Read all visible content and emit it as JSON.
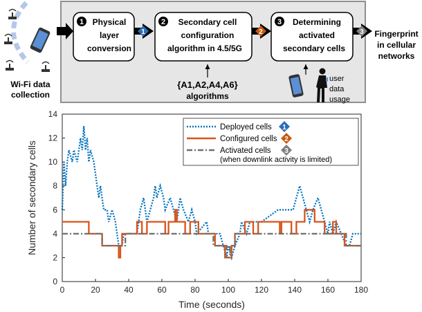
{
  "diagram": {
    "wifi_caption": [
      "Wi-Fi data",
      "collection"
    ],
    "steps": [
      {
        "number": "1",
        "lines": [
          "Physical",
          "layer",
          "conversion"
        ]
      },
      {
        "number": "2",
        "lines": [
          "Secondary cell",
          "configuration",
          "algorithm in 4.5/5G"
        ]
      },
      {
        "number": "3",
        "lines": [
          "Determining",
          "activated",
          "secondary cells"
        ]
      }
    ],
    "algorithms": [
      "{A1,A2,A4,A6}",
      "algorithms"
    ],
    "user_data": [
      "user",
      "data",
      "usage"
    ],
    "output": [
      "Fingerprint",
      "in cellular",
      "networks"
    ],
    "colors": {
      "badge1": "#2f6eb5",
      "badge2": "#c55a11",
      "badge3": "#7f7f7f",
      "panel": "#e6e6e6"
    }
  },
  "chart_data": {
    "type": "line",
    "xlabel": "Time (seconds)",
    "ylabel": "Number of secondary cells",
    "xlim": [
      0,
      180
    ],
    "ylim": [
      0,
      14
    ],
    "xticks": [
      0,
      20,
      40,
      60,
      80,
      100,
      120,
      140,
      160,
      180
    ],
    "yticks": [
      0,
      2,
      4,
      6,
      8,
      10,
      12,
      14
    ],
    "grid": false,
    "legend_position": "top-right",
    "series": [
      {
        "name": "Deployed cells",
        "badge": "1",
        "color": "#0072bd",
        "style": "dotted",
        "points": [
          [
            0,
            6
          ],
          [
            1,
            10
          ],
          [
            2,
            8
          ],
          [
            3,
            10
          ],
          [
            4,
            11
          ],
          [
            6,
            10
          ],
          [
            7,
            11
          ],
          [
            9,
            10
          ],
          [
            11,
            12
          ],
          [
            12,
            11
          ],
          [
            13,
            13
          ],
          [
            14,
            11
          ],
          [
            15,
            12
          ],
          [
            16,
            10
          ],
          [
            17,
            11
          ],
          [
            19,
            10
          ],
          [
            20,
            9
          ],
          [
            21,
            8
          ],
          [
            22,
            7
          ],
          [
            23,
            8
          ],
          [
            24,
            7
          ],
          [
            25,
            6
          ],
          [
            27,
            6
          ],
          [
            28,
            5
          ],
          [
            30,
            6
          ],
          [
            32,
            5
          ],
          [
            33,
            4
          ],
          [
            34,
            3
          ],
          [
            36,
            3
          ],
          [
            37,
            4
          ],
          [
            45,
            4
          ],
          [
            46,
            5
          ],
          [
            47,
            6
          ],
          [
            49,
            7
          ],
          [
            50,
            6
          ],
          [
            51,
            5
          ],
          [
            53,
            6
          ],
          [
            55,
            7
          ],
          [
            56,
            8
          ],
          [
            57,
            7
          ],
          [
            59,
            8
          ],
          [
            61,
            7
          ],
          [
            62,
            6
          ],
          [
            65,
            7
          ],
          [
            67,
            6
          ],
          [
            69,
            5
          ],
          [
            70,
            6
          ],
          [
            71,
            7
          ],
          [
            73,
            6
          ],
          [
            76,
            5
          ],
          [
            78,
            6
          ],
          [
            80,
            5
          ],
          [
            81,
            4
          ],
          [
            87,
            5
          ],
          [
            88,
            4
          ],
          [
            93,
            4
          ],
          [
            95,
            4
          ],
          [
            97,
            3
          ],
          [
            99,
            2
          ],
          [
            100,
            3
          ],
          [
            102,
            2
          ],
          [
            104,
            3
          ],
          [
            107,
            4
          ],
          [
            108,
            5
          ],
          [
            111,
            4
          ],
          [
            113,
            5
          ],
          [
            118,
            5
          ],
          [
            120,
            5
          ],
          [
            130,
            6
          ],
          [
            132,
            6
          ],
          [
            137,
            6
          ],
          [
            139,
            6
          ],
          [
            141,
            7
          ],
          [
            143,
            8
          ],
          [
            145,
            7
          ],
          [
            147,
            6
          ],
          [
            149,
            5
          ],
          [
            151,
            6
          ],
          [
            154,
            7
          ],
          [
            156,
            6
          ],
          [
            158,
            5
          ],
          [
            160,
            4
          ],
          [
            161,
            5
          ],
          [
            163,
            4
          ],
          [
            165,
            5
          ],
          [
            168,
            4
          ],
          [
            171,
            3
          ],
          [
            173,
            3
          ],
          [
            175,
            4
          ],
          [
            180,
            4
          ]
        ]
      },
      {
        "name": "Configured cells",
        "badge": "2",
        "color": "#d95319",
        "style": "solid",
        "points": [
          [
            0,
            5
          ],
          [
            16,
            5
          ],
          [
            16,
            4
          ],
          [
            24,
            4
          ],
          [
            24,
            3
          ],
          [
            34,
            3
          ],
          [
            34,
            2
          ],
          [
            35,
            2
          ],
          [
            35,
            3
          ],
          [
            36,
            3
          ],
          [
            36,
            4
          ],
          [
            45,
            4
          ],
          [
            45,
            5
          ],
          [
            48,
            5
          ],
          [
            48,
            4
          ],
          [
            51,
            4
          ],
          [
            51,
            5
          ],
          [
            62,
            5
          ],
          [
            62,
            4
          ],
          [
            64,
            4
          ],
          [
            64,
            5
          ],
          [
            68,
            5
          ],
          [
            68,
            6
          ],
          [
            69,
            6
          ],
          [
            69,
            5
          ],
          [
            74,
            5
          ],
          [
            74,
            4
          ],
          [
            77,
            4
          ],
          [
            77,
            5
          ],
          [
            82,
            5
          ],
          [
            82,
            4
          ],
          [
            92,
            4
          ],
          [
            92,
            3
          ],
          [
            98,
            3
          ],
          [
            98,
            2
          ],
          [
            102,
            2
          ],
          [
            102,
            3
          ],
          [
            104,
            3
          ],
          [
            104,
            4
          ],
          [
            110,
            4
          ],
          [
            110,
            5
          ],
          [
            115,
            5
          ],
          [
            115,
            4
          ],
          [
            118,
            4
          ],
          [
            118,
            5
          ],
          [
            131,
            5
          ],
          [
            131,
            4
          ],
          [
            132,
            4
          ],
          [
            132,
            5
          ],
          [
            138,
            5
          ],
          [
            138,
            4
          ],
          [
            141,
            4
          ],
          [
            141,
            5
          ],
          [
            146,
            5
          ],
          [
            146,
            6
          ],
          [
            152,
            6
          ],
          [
            152,
            5
          ],
          [
            158,
            5
          ],
          [
            158,
            4
          ],
          [
            163,
            4
          ],
          [
            163,
            5
          ],
          [
            165,
            5
          ],
          [
            165,
            4
          ],
          [
            170,
            4
          ],
          [
            170,
            3
          ],
          [
            180,
            3
          ]
        ]
      },
      {
        "name": "Activated cells",
        "sublabel": "(when downlink activity is limited)",
        "badge": "3",
        "color": "#6f6f6f",
        "style": "dashdot",
        "points": [
          [
            0,
            4
          ],
          [
            24,
            4
          ],
          [
            24,
            3
          ],
          [
            38,
            3
          ],
          [
            38,
            4
          ],
          [
            91,
            4
          ],
          [
            91,
            3
          ],
          [
            99,
            3
          ],
          [
            99,
            2
          ],
          [
            101,
            2
          ],
          [
            101,
            3
          ],
          [
            104,
            3
          ],
          [
            104,
            4
          ],
          [
            171,
            4
          ],
          [
            171,
            3
          ],
          [
            180,
            3
          ]
        ]
      }
    ]
  }
}
